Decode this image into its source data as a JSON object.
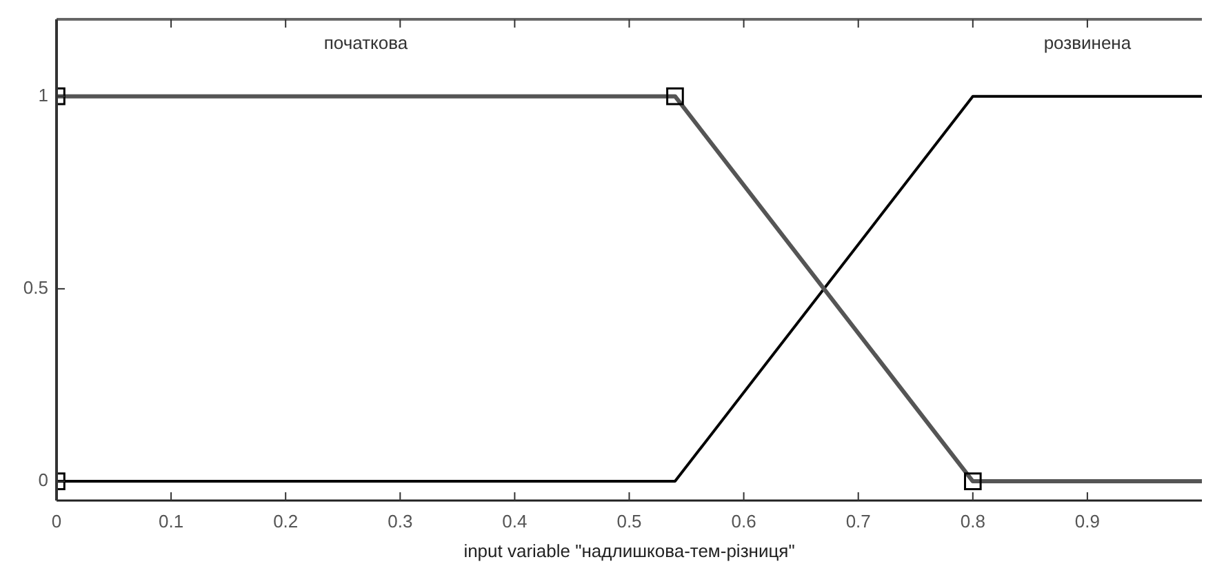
{
  "chart_data": {
    "type": "line",
    "xlabel": "input variable \"надлишкова-тем-різниця\"",
    "xlim": [
      0,
      1
    ],
    "ylim": [
      -0.05,
      1.2
    ],
    "xticks": [
      0,
      0.1,
      0.2,
      0.3,
      0.4,
      0.5,
      0.6,
      0.7,
      0.8,
      0.9
    ],
    "yticks": [
      0,
      0.5,
      1
    ],
    "series": [
      {
        "name": "початкова",
        "color": "#555555",
        "x": [
          0,
          0.54,
          0.8,
          1
        ],
        "values": [
          1,
          1,
          0,
          0
        ],
        "marker": "none"
      },
      {
        "name": "розвинена",
        "color": "#000000",
        "x": [
          0,
          0.54,
          0.8,
          1
        ],
        "values": [
          0,
          0,
          1,
          1
        ],
        "marker": "none"
      },
      {
        "type": "scatter",
        "color": "#000000",
        "x": [
          0,
          0,
          0.54,
          0.8
        ],
        "values": [
          1,
          0,
          1,
          0
        ],
        "marker": "square"
      }
    ]
  }
}
